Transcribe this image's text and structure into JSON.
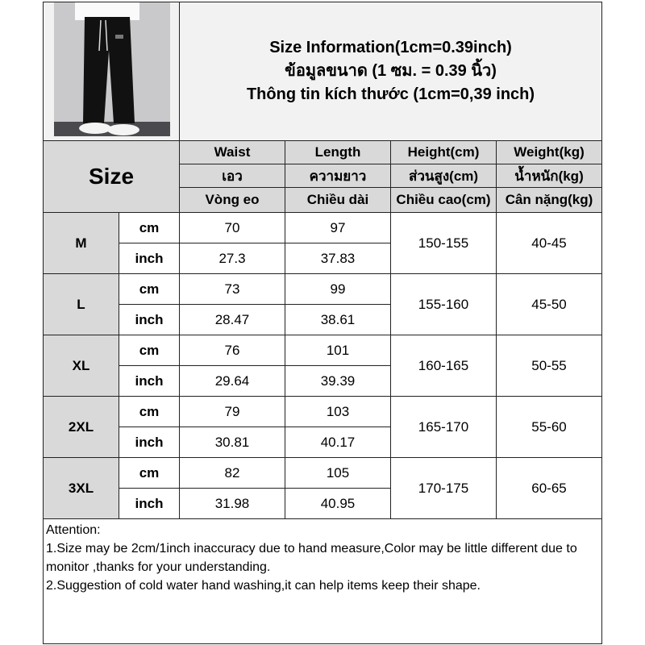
{
  "header": {
    "title_lines": [
      "Size Information(1cm=0.39inch)",
      "ข้อมูลขนาด (1 ซม. = 0.39 นิ้ว)",
      "Thông tin kích thước (1cm=0,39 inch)"
    ]
  },
  "size_label": "Size",
  "columns": [
    {
      "en": "Waist",
      "th": "เอว",
      "vi": "Vòng eo"
    },
    {
      "en": "Length",
      "th": "ความยาว",
      "vi": "Chiều dài"
    },
    {
      "en": "Height(cm)",
      "th": "ส่วนสูง(cm)",
      "vi": "Chiều cao(cm)"
    },
    {
      "en": "Weight(kg)",
      "th": "น้ำหนัก(kg)",
      "vi": "Cân nặng(kg)"
    }
  ],
  "units": {
    "cm": "cm",
    "inch": "inch"
  },
  "rows": [
    {
      "size": "M",
      "waist_cm": "70",
      "length_cm": "97",
      "waist_in": "27.3",
      "length_in": "37.83",
      "height": "150-155",
      "weight": "40-45"
    },
    {
      "size": "L",
      "waist_cm": "73",
      "length_cm": "99",
      "waist_in": "28.47",
      "length_in": "38.61",
      "height": "155-160",
      "weight": "45-50"
    },
    {
      "size": "XL",
      "waist_cm": "76",
      "length_cm": "101",
      "waist_in": "29.64",
      "length_in": "39.39",
      "height": "160-165",
      "weight": "50-55"
    },
    {
      "size": "2XL",
      "waist_cm": "79",
      "length_cm": "103",
      "waist_in": "30.81",
      "length_in": "40.17",
      "height": "165-170",
      "weight": "55-60"
    },
    {
      "size": "3XL",
      "waist_cm": "82",
      "length_cm": "105",
      "waist_in": "31.98",
      "length_in": "40.95",
      "height": "170-175",
      "weight": "60-65"
    }
  ],
  "attention": {
    "title": "Attention:",
    "lines": [
      "1.Size may be 2cm/1inch inaccuracy due to hand measure,Color may be little different due to monitor ,thanks for your understanding.",
      "2.Suggestion of cold water hand washing,it can help items keep their shape."
    ]
  }
}
